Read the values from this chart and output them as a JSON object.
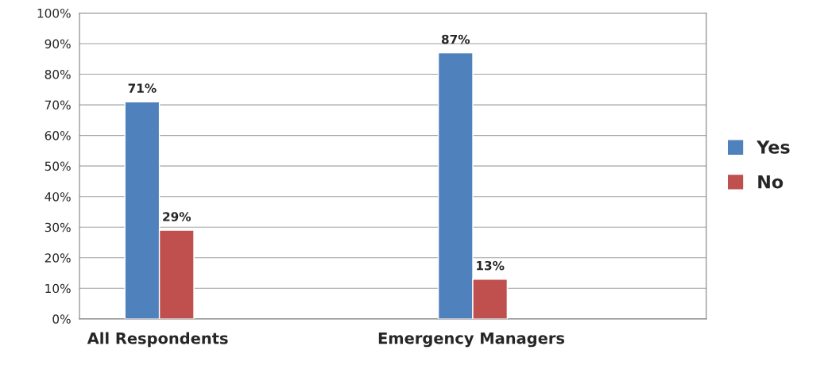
{
  "chart_data": {
    "type": "bar",
    "categories": [
      "All Respondents",
      null,
      "Emergency Managers",
      null
    ],
    "series": [
      {
        "name": "Yes",
        "color": "#4f81bd",
        "values": [
          71,
          null,
          87,
          null
        ],
        "value_labels": [
          "71%",
          null,
          "87%",
          null
        ]
      },
      {
        "name": "No",
        "color": "#c0504d",
        "values": [
          29,
          null,
          13,
          null
        ],
        "value_labels": [
          "29%",
          null,
          "13%",
          null
        ]
      }
    ],
    "ylim": [
      0,
      100
    ],
    "yticks": [
      {
        "value": 0,
        "label": "0%"
      },
      {
        "value": 10,
        "label": "10%"
      },
      {
        "value": 20,
        "label": "20%"
      },
      {
        "value": 30,
        "label": "30%"
      },
      {
        "value": 40,
        "label": "40%"
      },
      {
        "value": 50,
        "label": "50%"
      },
      {
        "value": 60,
        "label": "60%"
      },
      {
        "value": 70,
        "label": "70%"
      },
      {
        "value": 80,
        "label": "80%"
      },
      {
        "value": 90,
        "label": "90%"
      },
      {
        "value": 100,
        "label": "100%"
      }
    ],
    "grid": "y",
    "legend": "right"
  }
}
